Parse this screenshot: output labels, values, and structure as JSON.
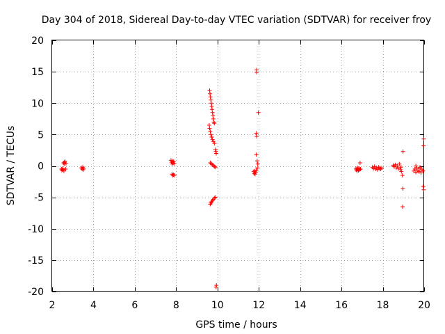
{
  "chart_data": {
    "type": "scatter",
    "title": "Day 304 of 2018, Sidereal Day-to-day VTEC variation (SDTVAR) for receiver froy",
    "xlabel": "GPS time / hours",
    "ylabel": "SDTVAR / TECUs",
    "xlim": [
      2,
      20
    ],
    "ylim": [
      -20,
      20
    ],
    "x_ticks": [
      2,
      4,
      6,
      8,
      10,
      12,
      14,
      16,
      18,
      20
    ],
    "y_ticks": [
      -20,
      -15,
      -10,
      -5,
      0,
      5,
      10,
      15,
      20
    ],
    "x_tick_labels": [
      "2",
      "4",
      "6",
      "8",
      "10",
      "12",
      "14",
      "16",
      "18",
      "20"
    ],
    "y_tick_labels": [
      "-20",
      "-15",
      "-10",
      "-5",
      "0",
      "5",
      "10",
      "15",
      "20"
    ],
    "grid": true,
    "marker": "plus",
    "marker_color": "#ff0000",
    "series": [
      {
        "name": "SDTVAR",
        "points": [
          [
            2.45,
            -0.5
          ],
          [
            2.47,
            -0.7
          ],
          [
            2.5,
            -0.4
          ],
          [
            2.52,
            -0.6
          ],
          [
            2.55,
            0.5
          ],
          [
            2.57,
            -0.8
          ],
          [
            2.6,
            0.6
          ],
          [
            2.62,
            0.7
          ],
          [
            2.65,
            -0.5
          ],
          [
            2.67,
            0.4
          ],
          [
            2.58,
            0.3
          ],
          [
            3.42,
            -0.3
          ],
          [
            3.45,
            -0.5
          ],
          [
            3.48,
            -0.2
          ],
          [
            3.5,
            -0.6
          ],
          [
            3.52,
            -0.4
          ],
          [
            7.75,
            0.9
          ],
          [
            7.78,
            0.6
          ],
          [
            7.8,
            0.3
          ],
          [
            7.82,
            0.8
          ],
          [
            7.85,
            0.5
          ],
          [
            7.88,
            0.7
          ],
          [
            7.9,
            0.4
          ],
          [
            7.8,
            -1.3
          ],
          [
            7.84,
            -1.5
          ],
          [
            7.87,
            -1.4
          ],
          [
            7.92,
            -1.5
          ],
          [
            9.62,
            12.0
          ],
          [
            9.64,
            11.5
          ],
          [
            9.66,
            11.0
          ],
          [
            9.68,
            10.5
          ],
          [
            9.7,
            10.0
          ],
          [
            9.72,
            9.5
          ],
          [
            9.74,
            9.0
          ],
          [
            9.76,
            8.5
          ],
          [
            9.78,
            8.0
          ],
          [
            9.8,
            7.5
          ],
          [
            9.82,
            7.0
          ],
          [
            9.85,
            6.8
          ],
          [
            9.6,
            6.5
          ],
          [
            9.62,
            6.0
          ],
          [
            9.65,
            5.5
          ],
          [
            9.68,
            5.0
          ],
          [
            9.72,
            4.6
          ],
          [
            9.76,
            4.2
          ],
          [
            9.8,
            3.9
          ],
          [
            9.85,
            3.6
          ],
          [
            9.9,
            2.6
          ],
          [
            9.92,
            2.3
          ],
          [
            9.94,
            2.0
          ],
          [
            9.65,
            0.5
          ],
          [
            9.7,
            0.4
          ],
          [
            9.75,
            0.2
          ],
          [
            9.8,
            0.1
          ],
          [
            9.85,
            -0.1
          ],
          [
            9.9,
            -0.2
          ],
          [
            9.65,
            -6.1
          ],
          [
            9.68,
            -5.9
          ],
          [
            9.72,
            -5.7
          ],
          [
            9.76,
            -5.5
          ],
          [
            9.8,
            -5.3
          ],
          [
            9.85,
            -5.1
          ],
          [
            9.9,
            -5.0
          ],
          [
            9.95,
            -19.0
          ],
          [
            9.93,
            -19.3
          ],
          [
            11.75,
            -0.9
          ],
          [
            11.78,
            -1.2
          ],
          [
            11.8,
            -0.8
          ],
          [
            11.82,
            -1.3
          ],
          [
            11.85,
            -1.0
          ],
          [
            11.88,
            -0.7
          ],
          [
            11.9,
            15.3
          ],
          [
            11.9,
            14.9
          ],
          [
            11.98,
            8.5
          ],
          [
            11.88,
            5.2
          ],
          [
            11.9,
            4.7
          ],
          [
            11.88,
            1.8
          ],
          [
            11.92,
            0.8
          ],
          [
            11.95,
            0.3
          ],
          [
            11.93,
            -0.3
          ],
          [
            16.7,
            -0.4
          ],
          [
            16.72,
            -0.6
          ],
          [
            16.75,
            -0.8
          ],
          [
            16.78,
            -0.3
          ],
          [
            16.8,
            -0.5
          ],
          [
            16.82,
            -0.7
          ],
          [
            16.85,
            -0.4
          ],
          [
            16.88,
            -0.6
          ],
          [
            16.9,
            0.5
          ],
          [
            16.92,
            -0.5
          ],
          [
            17.5,
            -0.2
          ],
          [
            17.55,
            -0.4
          ],
          [
            17.6,
            -0.1
          ],
          [
            17.65,
            -0.5
          ],
          [
            17.7,
            -0.3
          ],
          [
            17.75,
            -0.6
          ],
          [
            17.8,
            -0.2
          ],
          [
            17.85,
            -0.4
          ],
          [
            17.9,
            -0.5
          ],
          [
            17.95,
            -0.3
          ],
          [
            18.5,
            0.1
          ],
          [
            18.55,
            -0.1
          ],
          [
            18.6,
            0.2
          ],
          [
            18.65,
            -0.3
          ],
          [
            18.7,
            0.0
          ],
          [
            18.75,
            -0.4
          ],
          [
            18.8,
            0.3
          ],
          [
            18.85,
            -0.6
          ],
          [
            18.9,
            -0.9
          ],
          [
            18.88,
            -0.2
          ],
          [
            18.95,
            -1.5
          ],
          [
            18.98,
            2.3
          ],
          [
            18.97,
            -3.6
          ],
          [
            18.96,
            -6.5
          ],
          [
            19.5,
            -0.8
          ],
          [
            19.55,
            -0.5
          ],
          [
            19.6,
            -1.0
          ],
          [
            19.65,
            -0.3
          ],
          [
            19.7,
            -0.7
          ],
          [
            19.75,
            -0.9
          ],
          [
            19.8,
            -0.4
          ],
          [
            19.85,
            -1.1
          ],
          [
            19.9,
            -0.6
          ],
          [
            19.95,
            -0.8
          ],
          [
            19.6,
            0.0
          ],
          [
            19.8,
            -0.2
          ],
          [
            19.98,
            4.3
          ],
          [
            19.97,
            3.2
          ],
          [
            19.96,
            -3.3
          ],
          [
            19.98,
            -3.8
          ]
        ]
      }
    ]
  }
}
